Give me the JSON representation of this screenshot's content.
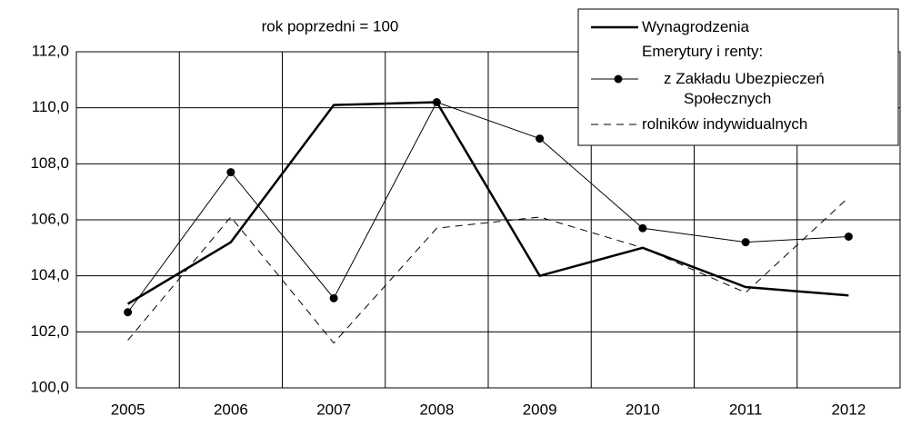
{
  "chart_data": {
    "type": "line",
    "subtitle": "rok poprzedni = 100",
    "legend_group_title": "Emerytury i renty:",
    "categories": [
      "2005",
      "2006",
      "2007",
      "2008",
      "2009",
      "2010",
      "2011",
      "2012"
    ],
    "series": [
      {
        "name": "Wynagrodzenia",
        "color": "#000000",
        "line_style": "thick",
        "values": [
          103.0,
          105.2,
          110.1,
          110.2,
          104.0,
          105.0,
          103.6,
          103.3
        ]
      },
      {
        "name": "z Zakładu Ubezpieczeń Społecznych",
        "color": "#000000",
        "line_style": "thin",
        "marker": "circle",
        "values": [
          102.7,
          107.7,
          103.2,
          110.2,
          108.9,
          105.7,
          105.2,
          105.4
        ]
      },
      {
        "name": "rolników indywidualnych",
        "color": "#000000",
        "line_style": "dashed",
        "values": [
          101.7,
          106.1,
          101.6,
          105.7,
          106.1,
          105.0,
          103.4,
          106.8
        ]
      }
    ],
    "ylim": [
      100,
      112
    ],
    "yticks": [
      {
        "value": 100,
        "label": "100,0"
      },
      {
        "value": 102,
        "label": "102,0"
      },
      {
        "value": 104,
        "label": "104,0"
      },
      {
        "value": 106,
        "label": "106,0"
      },
      {
        "value": 108,
        "label": "108,0"
      },
      {
        "value": 110,
        "label": "110,0"
      },
      {
        "value": 112,
        "label": "112,0"
      }
    ],
    "grid": true,
    "legend": "upper right"
  }
}
